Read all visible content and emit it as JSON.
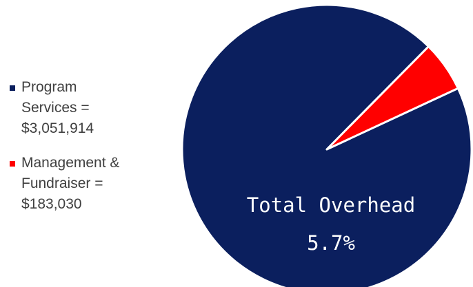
{
  "chart_data": {
    "type": "pie",
    "title": "",
    "legend_position": "left",
    "slices": [
      {
        "label_lines": [
          "Program",
          "Services =",
          "$3,051,914"
        ],
        "value": 3051914,
        "color": "#0b1f5e"
      },
      {
        "label_lines": [
          "Management &",
          "Fundraiser =",
          "$183,030"
        ],
        "value": 183030,
        "color": "#ff0000"
      }
    ],
    "annotation": {
      "line1": "Total Overhead",
      "line2": "5.7%"
    },
    "border_color": "#ffffff"
  }
}
